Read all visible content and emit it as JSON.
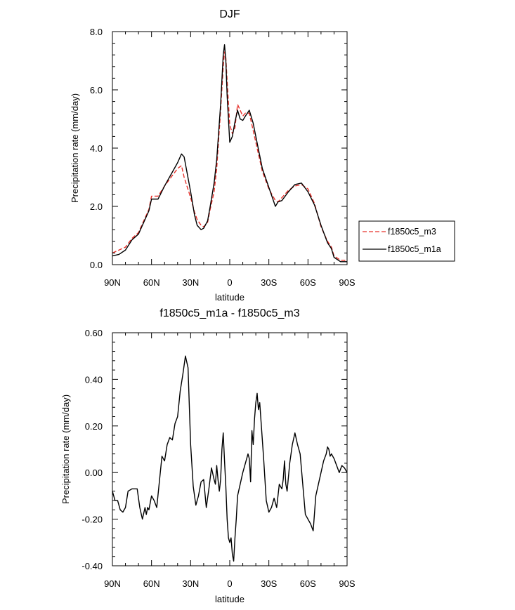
{
  "chart_data": [
    {
      "type": "line",
      "title": "DJF",
      "xlabel": "latitude",
      "ylabel": "Precipitation rate (mm/day)",
      "xlim": [
        90,
        -90
      ],
      "ylim": [
        0,
        8
      ],
      "x_ticks": [
        {
          "value": 90,
          "label": "90N"
        },
        {
          "value": 60,
          "label": "60N"
        },
        {
          "value": 30,
          "label": "30N"
        },
        {
          "value": 0,
          "label": "0"
        },
        {
          "value": -30,
          "label": "30S"
        },
        {
          "value": -60,
          "label": "60S"
        },
        {
          "value": -90,
          "label": "90S"
        }
      ],
      "y_ticks": [
        {
          "value": 0,
          "label": "0.0"
        },
        {
          "value": 2,
          "label": "2.0"
        },
        {
          "value": 4,
          "label": "4.0"
        },
        {
          "value": 6,
          "label": "6.0"
        },
        {
          "value": 8,
          "label": "8.0"
        }
      ],
      "legend": {
        "placement": "outside-right"
      },
      "series": [
        {
          "name": "f1850c5_m3",
          "color": "#e8302a",
          "dash": "dashed",
          "x": [
            90,
            85,
            80,
            75,
            70,
            65,
            62,
            60,
            55,
            50,
            45,
            40,
            37,
            35,
            30,
            27,
            25,
            22,
            20,
            17,
            15,
            12,
            10,
            7,
            5,
            4,
            3,
            2,
            0,
            -2,
            -4,
            -6,
            -8,
            -10,
            -12,
            -15,
            -18,
            -20,
            -25,
            -30,
            -35,
            -37,
            -40,
            -45,
            -50,
            -55,
            -60,
            -65,
            -70,
            -75,
            -78,
            -80,
            -85,
            -88,
            -90
          ],
          "y": [
            0.4,
            0.5,
            0.6,
            0.9,
            1.1,
            1.6,
            1.9,
            2.35,
            2.35,
            2.7,
            3.0,
            3.3,
            3.4,
            3.0,
            2.3,
            1.8,
            1.55,
            1.35,
            1.3,
            1.45,
            1.9,
            2.5,
            3.3,
            5.3,
            6.8,
            7.3,
            7.1,
            6.3,
            4.8,
            4.5,
            4.7,
            5.5,
            5.3,
            5.1,
            5.2,
            5.2,
            4.6,
            4.2,
            3.2,
            2.6,
            2.2,
            2.15,
            2.3,
            2.55,
            2.7,
            2.75,
            2.6,
            2.1,
            1.3,
            0.8,
            0.6,
            0.3,
            0.15,
            0.15,
            0.1
          ]
        },
        {
          "name": "f1850c5_m1a",
          "color": "#000000",
          "dash": "solid",
          "x": [
            90,
            85,
            80,
            75,
            70,
            65,
            62,
            60,
            55,
            50,
            45,
            40,
            37,
            35,
            30,
            27,
            25,
            22,
            20,
            17,
            15,
            12,
            10,
            7,
            5,
            4,
            3,
            2,
            0,
            -2,
            -4,
            -6,
            -8,
            -10,
            -12,
            -15,
            -18,
            -20,
            -25,
            -30,
            -35,
            -37,
            -40,
            -45,
            -50,
            -55,
            -60,
            -65,
            -70,
            -75,
            -78,
            -80,
            -85,
            -88,
            -90
          ],
          "y": [
            0.3,
            0.35,
            0.5,
            0.85,
            1.05,
            1.55,
            1.85,
            2.25,
            2.25,
            2.7,
            3.1,
            3.5,
            3.8,
            3.7,
            2.5,
            1.7,
            1.35,
            1.2,
            1.25,
            1.5,
            2.0,
            2.8,
            3.6,
            5.5,
            7.2,
            7.55,
            7.0,
            5.8,
            4.2,
            4.4,
            4.9,
            5.3,
            5.0,
            4.95,
            5.1,
            5.3,
            4.85,
            4.4,
            3.3,
            2.65,
            2.0,
            2.15,
            2.2,
            2.5,
            2.75,
            2.8,
            2.5,
            2.05,
            1.35,
            0.75,
            0.55,
            0.25,
            0.1,
            0.1,
            0.1
          ]
        }
      ]
    },
    {
      "type": "line",
      "title": "f1850c5_m1a - f1850c5_m3",
      "xlabel": "latitude",
      "ylabel": "Precipitation rate (mm/day)",
      "xlim": [
        90,
        -90
      ],
      "ylim": [
        -0.4,
        0.6
      ],
      "x_ticks": [
        {
          "value": 90,
          "label": "90N"
        },
        {
          "value": 60,
          "label": "60N"
        },
        {
          "value": 30,
          "label": "30N"
        },
        {
          "value": 0,
          "label": "0"
        },
        {
          "value": -30,
          "label": "30S"
        },
        {
          "value": -60,
          "label": "60S"
        },
        {
          "value": -90,
          "label": "90S"
        }
      ],
      "y_ticks": [
        {
          "value": -0.4,
          "label": "-0.40"
        },
        {
          "value": -0.2,
          "label": "-0.20"
        },
        {
          "value": 0.0,
          "label": "0.00"
        },
        {
          "value": 0.2,
          "label": "0.20"
        },
        {
          "value": 0.4,
          "label": "0.40"
        },
        {
          "value": 0.6,
          "label": "0.60"
        }
      ],
      "series": [
        {
          "name": "f1850c5_m1a - f1850c5_m3",
          "color": "#000000",
          "dash": "solid",
          "x": [
            90,
            88,
            86,
            84,
            82,
            80,
            78,
            75,
            71,
            69,
            67,
            65,
            64,
            63,
            62,
            60,
            58,
            56,
            52,
            50,
            48,
            46,
            44,
            42,
            40,
            38,
            36,
            34,
            32,
            30,
            28,
            26,
            24,
            22,
            20,
            18,
            16,
            14,
            12,
            11,
            10,
            9,
            8,
            7,
            6,
            5,
            4,
            3,
            2,
            1,
            0,
            -1,
            -2,
            -3,
            -4,
            -5,
            -6,
            -8,
            -10,
            -12,
            -14,
            -15,
            -16,
            -17,
            -18,
            -19,
            -20,
            -21,
            -22,
            -23,
            -24,
            -26,
            -28,
            -30,
            -32,
            -34,
            -36,
            -38,
            -40,
            -41,
            -42,
            -43,
            -44,
            -46,
            -48,
            -50,
            -52,
            -54,
            -58,
            -62,
            -64,
            -66,
            -68,
            -70,
            -72,
            -74,
            -75,
            -76,
            -77,
            -78,
            -80,
            -82,
            -84,
            -86,
            -88,
            -90
          ],
          "y": [
            -0.08,
            -0.12,
            -0.12,
            -0.16,
            -0.17,
            -0.15,
            -0.08,
            -0.07,
            -0.07,
            -0.15,
            -0.2,
            -0.15,
            -0.18,
            -0.15,
            -0.16,
            -0.1,
            -0.12,
            -0.15,
            0.07,
            0.05,
            0.12,
            0.15,
            0.14,
            0.21,
            0.24,
            0.35,
            0.42,
            0.5,
            0.45,
            0.12,
            -0.06,
            -0.14,
            -0.1,
            -0.04,
            -0.03,
            -0.15,
            -0.07,
            0.02,
            -0.03,
            -0.05,
            0.03,
            -0.03,
            -0.08,
            -0.03,
            0.1,
            0.17,
            0.05,
            -0.06,
            -0.2,
            -0.28,
            -0.3,
            -0.28,
            -0.35,
            -0.38,
            -0.28,
            -0.2,
            -0.1,
            -0.05,
            0.0,
            0.04,
            0.08,
            0.06,
            -0.04,
            0.18,
            0.12,
            0.23,
            0.3,
            0.34,
            0.27,
            0.3,
            0.22,
            0.06,
            -0.12,
            -0.17,
            -0.15,
            -0.11,
            -0.15,
            -0.05,
            -0.07,
            -0.03,
            0.05,
            -0.05,
            -0.08,
            0.04,
            0.12,
            0.17,
            0.12,
            0.08,
            -0.18,
            -0.22,
            -0.25,
            -0.1,
            -0.05,
            0.0,
            0.05,
            0.08,
            0.11,
            0.1,
            0.07,
            0.08,
            0.06,
            0.03,
            0.0,
            0.03,
            0.02,
            0.0
          ]
        }
      ]
    }
  ]
}
